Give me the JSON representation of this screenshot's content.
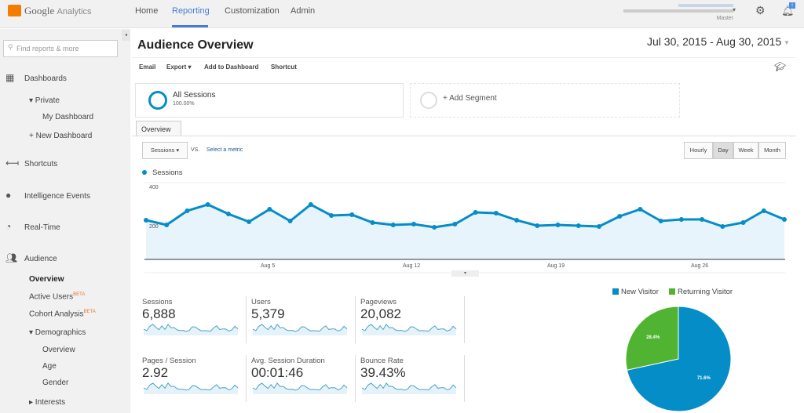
{
  "header": {
    "brand": "Google",
    "brand_sub": "Analytics",
    "nav": [
      "Home",
      "Reporting",
      "Customization",
      "Admin"
    ],
    "active_nav": "Reporting",
    "account_view": "Master",
    "notification_badge": "i"
  },
  "sidebar": {
    "search_placeholder": "Find reports & more",
    "items": [
      {
        "label": "Dashboards",
        "icon": "grid-icon"
      },
      {
        "label": "▾ Private"
      },
      {
        "label": "My Dashboard"
      },
      {
        "label": "+ New Dashboard"
      },
      {
        "label": "Shortcuts",
        "icon": "arrow-icon"
      },
      {
        "label": "Intelligence Events",
        "icon": "bulb-icon"
      },
      {
        "label": "Real-Time",
        "icon": "clock-icon"
      },
      {
        "label": "Audience",
        "icon": "people-icon"
      },
      {
        "label": "Overview"
      },
      {
        "label": "Active Users",
        "badge": "BETA"
      },
      {
        "label": "Cohort Analysis",
        "badge": "BETA"
      },
      {
        "label": "▾ Demographics"
      },
      {
        "label": "Overview"
      },
      {
        "label": "Age"
      },
      {
        "label": "Gender"
      },
      {
        "label": "▸ Interests"
      }
    ]
  },
  "main": {
    "title": "Audience Overview",
    "date_range": "Jul 30, 2015 - Aug 30, 2015",
    "toolbar": [
      "Email",
      "Export ▾",
      "Add to Dashboard",
      "Shortcut"
    ],
    "segments": {
      "active": "All Sessions",
      "active_pct": "100.00%",
      "add": "+ Add Segment"
    },
    "tab": "Overview",
    "metric_select": "Sessions ▾",
    "vs": "VS.",
    "select_metric": "Select a metric",
    "granularity": [
      "Hourly",
      "Day",
      "Week",
      "Month"
    ],
    "active_granularity": "Day",
    "metrics": [
      {
        "label": "Sessions",
        "value": "6,888"
      },
      {
        "label": "Users",
        "value": "5,379"
      },
      {
        "label": "Pageviews",
        "value": "20,082"
      },
      {
        "label": "Pages / Session",
        "value": "2.92"
      },
      {
        "label": "Avg. Session Duration",
        "value": "00:01:46"
      },
      {
        "label": "Bounce Rate",
        "value": "39.43%"
      }
    ]
  },
  "chart_data": [
    {
      "type": "area",
      "legend": "Sessions",
      "color": "#058dc7",
      "x_ticks": [
        "Aug 5",
        "Aug 12",
        "Aug 19",
        "Aug 26"
      ],
      "y_ticks": [
        "400",
        "200"
      ],
      "ylim": [
        0,
        400
      ],
      "x": [
        "Jul 30",
        "Jul 31",
        "Aug 1",
        "Aug 2",
        "Aug 3",
        "Aug 4",
        "Aug 5",
        "Aug 6",
        "Aug 7",
        "Aug 8",
        "Aug 9",
        "Aug 10",
        "Aug 11",
        "Aug 12",
        "Aug 13",
        "Aug 14",
        "Aug 15",
        "Aug 16",
        "Aug 17",
        "Aug 18",
        "Aug 19",
        "Aug 20",
        "Aug 21",
        "Aug 22",
        "Aug 23",
        "Aug 24",
        "Aug 25",
        "Aug 26",
        "Aug 27",
        "Aug 28",
        "Aug 29",
        "Aug 30"
      ],
      "values": [
        208,
        184,
        256,
        288,
        240,
        200,
        264,
        204,
        288,
        232,
        236,
        196,
        184,
        188,
        172,
        188,
        248,
        244,
        208,
        180,
        184,
        180,
        176,
        228,
        264,
        204,
        212,
        212,
        176,
        196,
        256,
        212
      ]
    },
    {
      "type": "pie",
      "legend": [
        "New Visitor",
        "Returning Visitor"
      ],
      "values": [
        71.6,
        28.4
      ],
      "labels": [
        "71.6%",
        "28.4%"
      ],
      "colors": [
        "#058dc7",
        "#50b432"
      ]
    }
  ]
}
